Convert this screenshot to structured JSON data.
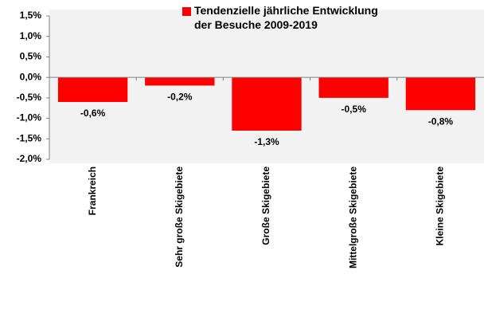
{
  "chart_data": {
    "type": "bar",
    "categories": [
      "Frankreich",
      "Sehr große Skigebiete",
      "Große Skigebiete",
      "Mittelgroße Skigebiete",
      "Kleine Skigebiete"
    ],
    "series": [
      {
        "name": "Tendenzielle jährliche Entwicklung der Besuche 2009-2019",
        "color": "#ff0000",
        "values": [
          -0.6,
          -0.2,
          -1.3,
          -0.5,
          -0.8
        ],
        "value_labels": [
          "-0,6%",
          "-0,2%",
          "-1,3%",
          "-0,5%",
          "-0,8%"
        ]
      }
    ],
    "ylim": [
      -2.0,
      1.5
    ],
    "yticks": [
      {
        "value": -2.0,
        "label": "-2,0%"
      },
      {
        "value": -1.5,
        "label": "-1,5%"
      },
      {
        "value": -1.0,
        "label": "-1,0%"
      },
      {
        "value": -0.5,
        "label": "-0,5%"
      },
      {
        "value": 0,
        "label": "0,0%"
      },
      {
        "value": 0.5,
        "label": "0,5%"
      },
      {
        "value": 1.0,
        "label": "1,0%"
      },
      {
        "value": 1.5,
        "label": "1,5%"
      }
    ],
    "legend": "top"
  }
}
